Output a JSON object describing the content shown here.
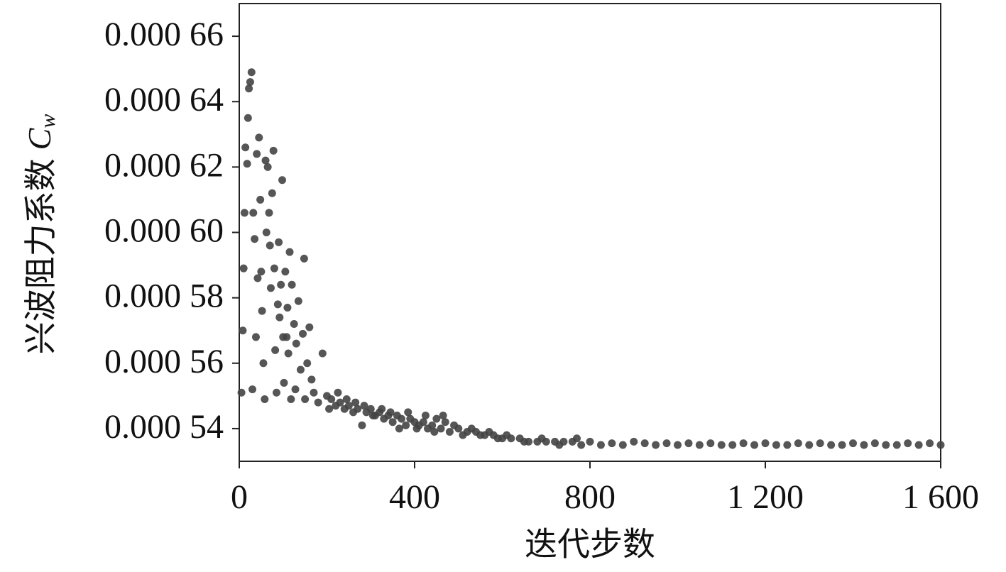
{
  "chart_data": {
    "type": "scatter",
    "ylabel": "兴波阻力系数",
    "ylabel_symbol": "C",
    "ylabel_subscript": "w",
    "xlabel": "迭代步数",
    "color": "#444444",
    "xlim": [
      0,
      1600
    ],
    "ylim": [
      0.00053,
      0.00067
    ],
    "xticks": [
      0,
      400,
      800,
      {
        "value": 1200,
        "label": "1 200"
      },
      {
        "value": 1600,
        "label": "1 600"
      }
    ],
    "yticks": [
      {
        "value": 0.00054,
        "label": "0.000 54"
      },
      {
        "value": 0.00056,
        "label": "0.000 56"
      },
      {
        "value": 0.00058,
        "label": "0.000 58"
      },
      {
        "value": 0.0006,
        "label": "0.000 60"
      },
      {
        "value": 0.00062,
        "label": "0.000 62"
      },
      {
        "value": 0.00064,
        "label": "0.000 64"
      },
      {
        "value": 0.00066,
        "label": "0.000 66"
      }
    ],
    "x": [
      5,
      8,
      10,
      12,
      14,
      18,
      20,
      22,
      25,
      28,
      30,
      32,
      35,
      38,
      40,
      42,
      45,
      48,
      50,
      52,
      55,
      58,
      60,
      62,
      65,
      68,
      70,
      72,
      75,
      78,
      80,
      82,
      85,
      88,
      90,
      92,
      95,
      98,
      100,
      102,
      105,
      108,
      110,
      112,
      115,
      118,
      120,
      125,
      128,
      130,
      135,
      140,
      145,
      148,
      150,
      155,
      160,
      165,
      170,
      180,
      190,
      200,
      210,
      220,
      230,
      240,
      250,
      260,
      270,
      280,
      290,
      300,
      310,
      320,
      330,
      340,
      350,
      360,
      370,
      380,
      390,
      400,
      410,
      420,
      430,
      440,
      450,
      460,
      470,
      480,
      500,
      520,
      540,
      560,
      580,
      600,
      620,
      640,
      660,
      680,
      700,
      720,
      740,
      760,
      780,
      205,
      225,
      245,
      265,
      285,
      305,
      325,
      345,
      365,
      385,
      405,
      425,
      445,
      465,
      490,
      510,
      530,
      550,
      570,
      590,
      610,
      650,
      690,
      730,
      770,
      800,
      825,
      850,
      875,
      900,
      925,
      950,
      975,
      1000,
      1025,
      1050,
      1075,
      1100,
      1125,
      1150,
      1175,
      1200,
      1225,
      1250,
      1275,
      1300,
      1325,
      1350,
      1375,
      1400,
      1425,
      1450,
      1475,
      1500,
      1525,
      1550,
      1575,
      1600
    ],
    "y": [
      0.000551,
      0.00057,
      0.000589,
      0.000606,
      0.000626,
      0.000621,
      0.000635,
      0.000644,
      0.000646,
      0.000649,
      0.000552,
      0.000606,
      0.000598,
      0.000568,
      0.000624,
      0.000586,
      0.000629,
      0.00061,
      0.000588,
      0.000576,
      0.00056,
      0.000549,
      0.000622,
      0.0006,
      0.00062,
      0.000606,
      0.000596,
      0.000583,
      0.000612,
      0.000625,
      0.000589,
      0.000564,
      0.000551,
      0.000578,
      0.000597,
      0.000574,
      0.000584,
      0.000616,
      0.000568,
      0.000554,
      0.000588,
      0.000568,
      0.000577,
      0.000563,
      0.000594,
      0.000549,
      0.000584,
      0.000572,
      0.000552,
      0.000566,
      0.000579,
      0.000558,
      0.000569,
      0.000592,
      0.000549,
      0.00056,
      0.000571,
      0.000555,
      0.000551,
      0.000548,
      0.000563,
      0.00055,
      0.000549,
      0.000547,
      0.000548,
      0.000546,
      0.000547,
      0.000545,
      0.000546,
      0.000541,
      0.000545,
      0.000546,
      0.000544,
      0.000545,
      0.000543,
      0.000544,
      0.000542,
      0.000544,
      0.000543,
      0.000541,
      0.000543,
      0.000542,
      0.000541,
      0.000542,
      0.00054,
      0.000541,
      0.000543,
      0.00054,
      0.000542,
      0.000539,
      0.00054,
      0.000539,
      0.000539,
      0.000538,
      0.000538,
      0.000537,
      0.000537,
      0.000537,
      0.000536,
      0.000536,
      0.000536,
      0.000536,
      0.000536,
      0.000536,
      0.000535,
      0.000546,
      0.000551,
      0.000549,
      0.000548,
      0.000547,
      0.000544,
      0.000546,
      0.000545,
      0.00054,
      0.000545,
      0.00054,
      0.000544,
      0.000539,
      0.000544,
      0.000541,
      0.000538,
      0.00054,
      0.000538,
      0.000539,
      0.000537,
      0.000538,
      0.000536,
      0.000537,
      0.000535,
      0.000537,
      0.000536,
      0.000535,
      0.0005355,
      0.000535,
      0.000536,
      0.0005355,
      0.000535,
      0.0005355,
      0.000535,
      0.0005355,
      0.000535,
      0.0005355,
      0.000535,
      0.000535,
      0.0005355,
      0.000535,
      0.0005355,
      0.000535,
      0.000535,
      0.0005355,
      0.000535,
      0.0005355,
      0.000535,
      0.000535,
      0.0005355,
      0.000535,
      0.0005355,
      0.000535,
      0.000535,
      0.0005355,
      0.000535,
      0.0005355,
      0.000535
    ]
  }
}
